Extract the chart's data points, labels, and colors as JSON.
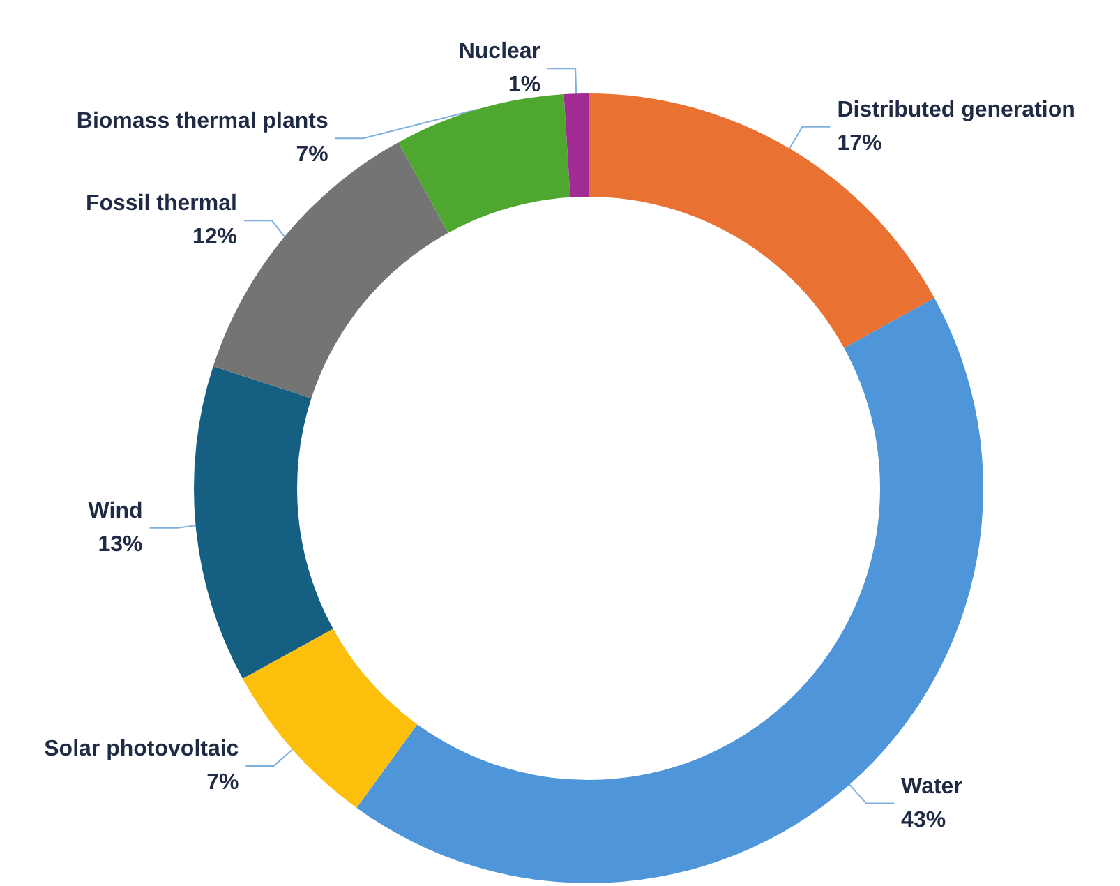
{
  "chart_data": {
    "type": "donut",
    "categories": [
      "Distributed generation",
      "Water",
      "Solar photovoltaic",
      "Wind",
      "Fossil thermal",
      "Biomass thermal plants",
      "Nuclear"
    ],
    "values": [
      17,
      43,
      7,
      13,
      12,
      7,
      1
    ],
    "value_labels": [
      "17%",
      "43%",
      "7%",
      "13%",
      "12%",
      "7%",
      "1%"
    ],
    "colors": [
      "#e97132",
      "#4e95d9",
      "#fbbf0c",
      "#156082",
      "#747474",
      "#4ea72e",
      "#a02b93"
    ],
    "legend": false
  }
}
